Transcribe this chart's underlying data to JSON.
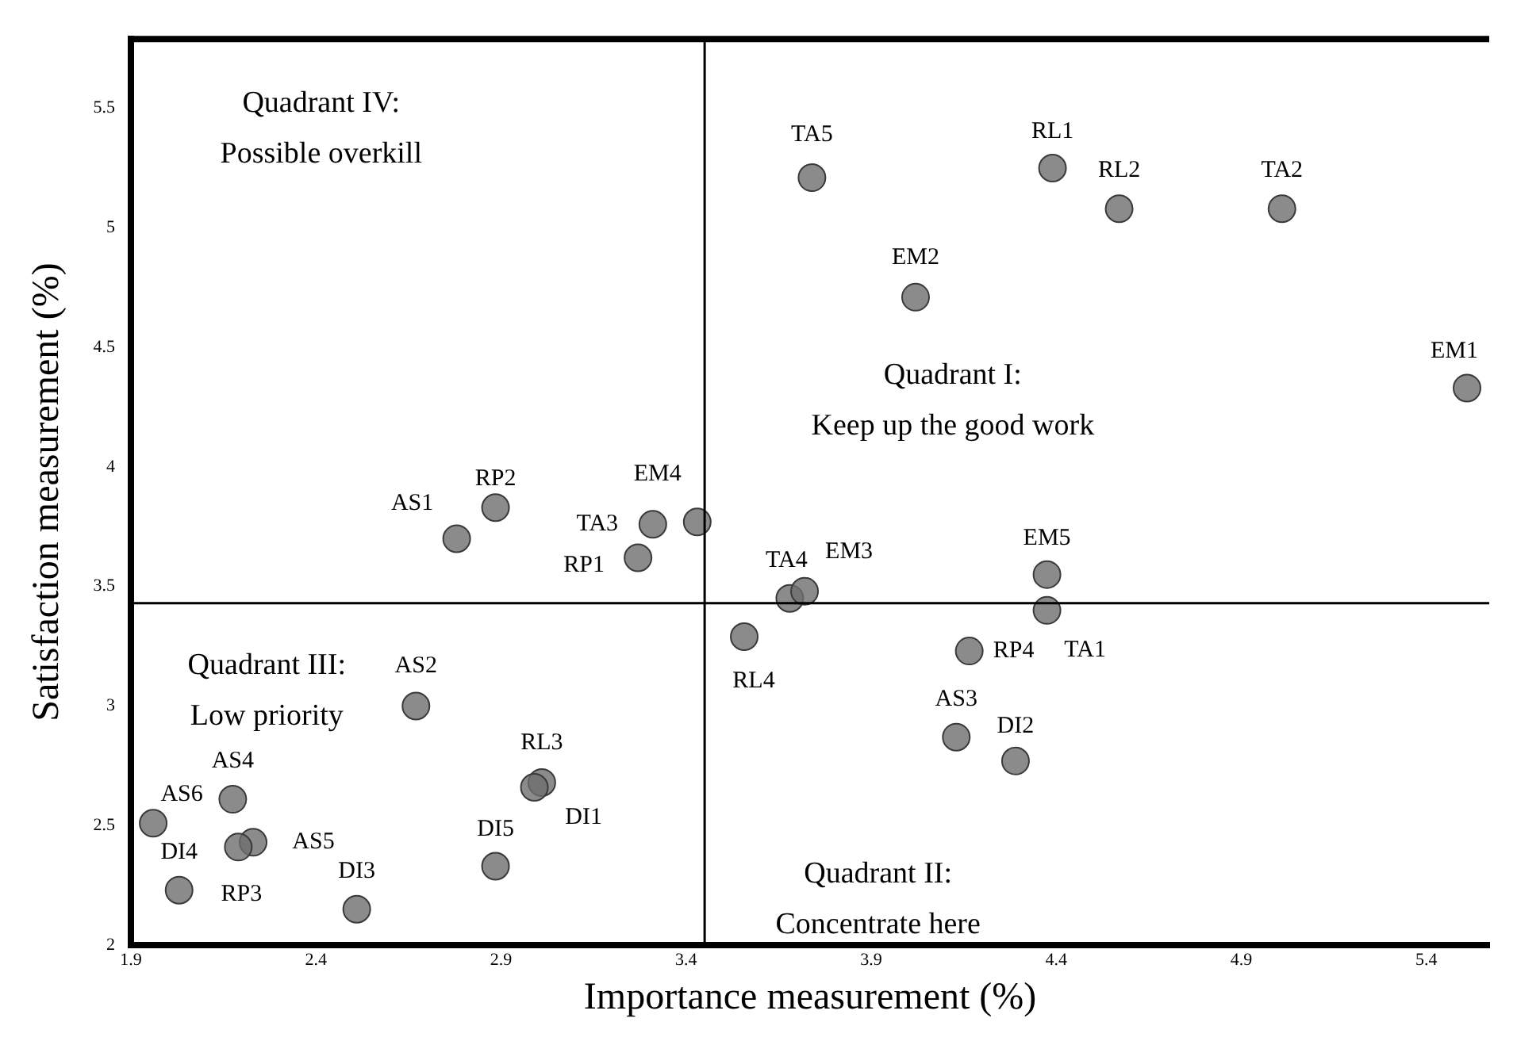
{
  "chart_data": {
    "type": "scatter",
    "xlabel": "Importance measurement (%)",
    "ylabel": "Satisfaction measurement (%)",
    "xlim": [
      1.9,
      5.57
    ],
    "ylim": [
      2,
      5.79
    ],
    "xticks": [
      1.9,
      2.4,
      2.9,
      3.4,
      3.9,
      4.4,
      4.9,
      5.4
    ],
    "yticks": [
      2,
      2.5,
      3,
      3.5,
      4,
      4.5,
      5,
      5.5
    ],
    "grid": false,
    "legend": false,
    "marker": "circle",
    "series": [
      {
        "color": "#6e6e6e",
        "x": [
          2.885,
          2.78,
          3.31,
          3.43,
          3.27,
          3.68,
          3.72,
          3.557,
          2.67,
          3.01,
          2.99,
          2.175,
          1.96,
          2.23,
          2.19,
          2.03,
          2.51,
          2.885,
          3.74,
          4.39,
          4.57,
          5.01,
          4.02,
          5.51,
          4.375,
          4.375,
          4.165,
          4.13,
          4.29
        ],
        "values": [
          3.83,
          3.7,
          3.76,
          3.77,
          3.62,
          3.45,
          3.48,
          3.29,
          3.0,
          2.68,
          2.66,
          2.61,
          2.51,
          2.43,
          2.41,
          2.23,
          2.15,
          2.33,
          5.21,
          5.25,
          5.08,
          5.08,
          4.71,
          4.33,
          3.55,
          3.4,
          3.23,
          2.87,
          2.77
        ]
      }
    ],
    "ref_lines": [
      {
        "axis": "x",
        "value": 3.45,
        "color": "#000000"
      },
      {
        "axis": "y",
        "value": 3.43,
        "color": "#000000"
      }
    ],
    "annotations": [
      {
        "text": "RP2",
        "x": 2.885,
        "y": 3.83
      },
      {
        "text": "AS1",
        "x": 2.78,
        "y": 3.7
      },
      {
        "text": "TA3",
        "x": 3.31,
        "y": 3.76
      },
      {
        "text": "EM4",
        "x": 3.43,
        "y": 3.77
      },
      {
        "text": "RP1",
        "x": 3.27,
        "y": 3.62
      },
      {
        "text": "TA4",
        "x": 3.68,
        "y": 3.45
      },
      {
        "text": "EM3",
        "x": 3.72,
        "y": 3.48
      },
      {
        "text": "RL4",
        "x": 3.557,
        "y": 3.29
      },
      {
        "text": "AS2",
        "x": 2.67,
        "y": 3.0
      },
      {
        "text": "RL3",
        "x": 3.01,
        "y": 2.68
      },
      {
        "text": "DI1",
        "x": 2.99,
        "y": 2.66
      },
      {
        "text": "AS4",
        "x": 2.175,
        "y": 2.61
      },
      {
        "text": "AS6",
        "x": 1.96,
        "y": 2.51
      },
      {
        "text": "AS5",
        "x": 2.23,
        "y": 2.43
      },
      {
        "text": "RP3",
        "x": 2.19,
        "y": 2.41
      },
      {
        "text": "DI4",
        "x": 2.03,
        "y": 2.23
      },
      {
        "text": "DI3",
        "x": 2.51,
        "y": 2.15
      },
      {
        "text": "DI5",
        "x": 2.885,
        "y": 2.33
      },
      {
        "text": "TA5",
        "x": 3.74,
        "y": 5.21
      },
      {
        "text": "RL1",
        "x": 4.39,
        "y": 5.25
      },
      {
        "text": "RL2",
        "x": 4.57,
        "y": 5.08
      },
      {
        "text": "TA2",
        "x": 5.01,
        "y": 5.08
      },
      {
        "text": "EM2",
        "x": 4.02,
        "y": 4.71
      },
      {
        "text": "EM1",
        "x": 5.51,
        "y": 4.33
      },
      {
        "text": "EM5",
        "x": 4.375,
        "y": 3.55
      },
      {
        "text": "TA1",
        "x": 4.375,
        "y": 3.4
      },
      {
        "text": "RP4",
        "x": 4.165,
        "y": 3.23
      },
      {
        "text": "AS3",
        "x": 4.13,
        "y": 2.87
      },
      {
        "text": "DI2",
        "x": 4.29,
        "y": 2.77
      },
      "Quadrant IV:\nPossible overkill",
      "Quadrant I:\nKeep up the good work",
      "Quadrant III:\nLow priority",
      "Quadrant II:\nConcentrate here"
    ]
  }
}
